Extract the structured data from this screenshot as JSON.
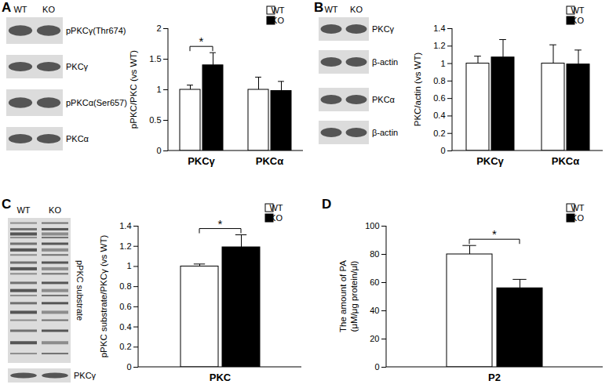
{
  "chart_data": [
    {
      "panel": "A",
      "type": "bar",
      "blot": {
        "lanes": [
          "WT",
          "KO"
        ],
        "rows": [
          "pPKCγ(Thr674)",
          "PKCγ",
          "pPKCα(Ser657)",
          "PKCα"
        ]
      },
      "categories": [
        "PKCγ",
        "PKCα"
      ],
      "series": [
        {
          "name": "WT",
          "color": "#ffffff",
          "values": [
            1,
            1
          ],
          "errors": [
            0.07,
            0.2
          ]
        },
        {
          "name": "KO",
          "color": "#000000",
          "values": [
            1.4,
            0.98
          ],
          "errors": [
            0.2,
            0.15
          ]
        }
      ],
      "y_label": [
        "pPKC/PKC (vs WT)"
      ],
      "ylim": [
        0,
        2
      ],
      "yticks": [
        0,
        0.5,
        1,
        1.5,
        2
      ],
      "legend": "top-right",
      "annotations": [
        {
          "text": "*",
          "category": "PKCγ"
        }
      ]
    },
    {
      "panel": "B",
      "type": "bar",
      "blot": {
        "lanes": [
          "WT",
          "KO"
        ],
        "rows": [
          "PKCγ",
          "β-actin",
          "PKCα",
          "β-actin"
        ]
      },
      "categories": [
        "PKCγ",
        "PKCα"
      ],
      "series": [
        {
          "name": "WT",
          "color": "#ffffff",
          "values": [
            1,
            1
          ],
          "errors": [
            0.08,
            0.21
          ]
        },
        {
          "name": "KO",
          "color": "#000000",
          "values": [
            1.07,
            0.99
          ],
          "errors": [
            0.2,
            0.16
          ]
        }
      ],
      "y_label": [
        "PKC/actin (vs WT)"
      ],
      "ylim": [
        0,
        1.4
      ],
      "yticks": [
        0,
        0.2,
        0.4,
        0.6,
        0.8,
        1,
        1.2,
        1.4
      ],
      "legend": "top-right",
      "annotations": []
    },
    {
      "panel": "C",
      "type": "bar",
      "blot": {
        "lanes": [
          "WT",
          "KO"
        ],
        "rows": [
          "pPKC substrate",
          "PKCγ"
        ]
      },
      "categories": [
        "PKC"
      ],
      "series": [
        {
          "name": "WT",
          "color": "#ffffff",
          "values": [
            1
          ],
          "errors": [
            0.02
          ]
        },
        {
          "name": "KO",
          "color": "#000000",
          "values": [
            1.19
          ],
          "errors": [
            0.12
          ]
        }
      ],
      "y_label": [
        "pPKC substrate/PKCγ (vs WT)"
      ],
      "ylim": [
        0,
        1.4
      ],
      "yticks": [
        0,
        0.2,
        0.4,
        0.6,
        0.8,
        1,
        1.2,
        1.4
      ],
      "legend": "top-right",
      "annotations": [
        {
          "text": "*",
          "category": "PKC"
        }
      ]
    },
    {
      "panel": "D",
      "type": "bar",
      "categories": [
        "P2"
      ],
      "series": [
        {
          "name": "WT",
          "color": "#ffffff",
          "values": [
            80
          ],
          "errors": [
            6
          ]
        },
        {
          "name": "KO",
          "color": "#000000",
          "values": [
            56
          ],
          "errors": [
            6
          ]
        }
      ],
      "y_label": [
        "The amount of PA",
        "(μM/μg protein/μl)"
      ],
      "ylim": [
        0,
        100
      ],
      "yticks": [
        0,
        20,
        40,
        60,
        80,
        100
      ],
      "legend": "top-right",
      "annotations": [
        {
          "text": "*",
          "category": "P2"
        }
      ]
    }
  ]
}
